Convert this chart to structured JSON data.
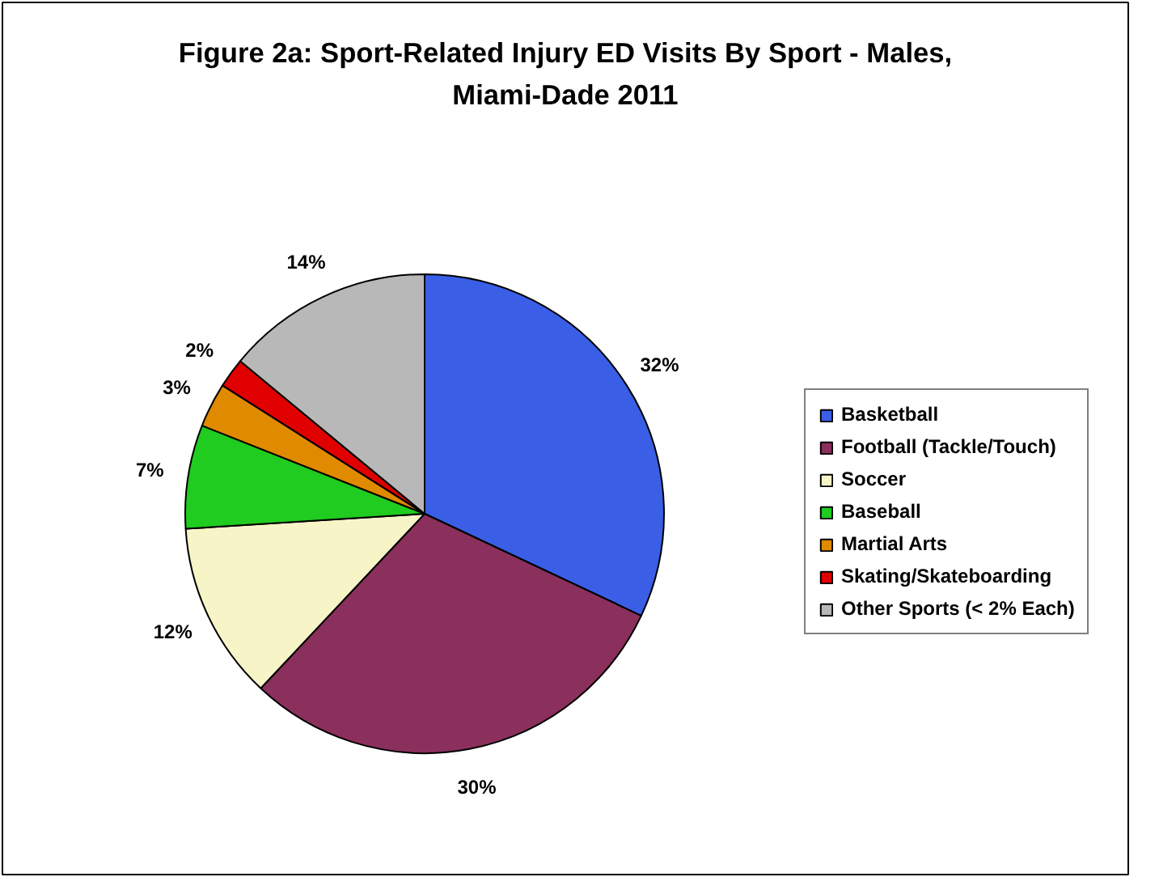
{
  "chart_data": {
    "type": "pie",
    "title": "Figure 2a: Sport-Related Injury ED Visits By Sport - Males, Miami-Dade 2011",
    "categories": [
      "Basketball",
      "Football (Tackle/Touch)",
      "Soccer",
      "Baseball",
      "Martial Arts",
      "Skating/Skateboarding",
      "Other Sports (< 2% Each)"
    ],
    "values": [
      32,
      30,
      12,
      7,
      3,
      2,
      14
    ],
    "colors": [
      "#3a5fe6",
      "#8b2f5c",
      "#f7f5c8",
      "#1fcc1f",
      "#e08a00",
      "#e00000",
      "#b8b8b8"
    ],
    "value_labels": [
      "32%",
      "30%",
      "12%",
      "7%",
      "3%",
      "2%",
      "14%"
    ],
    "legend": "right"
  }
}
